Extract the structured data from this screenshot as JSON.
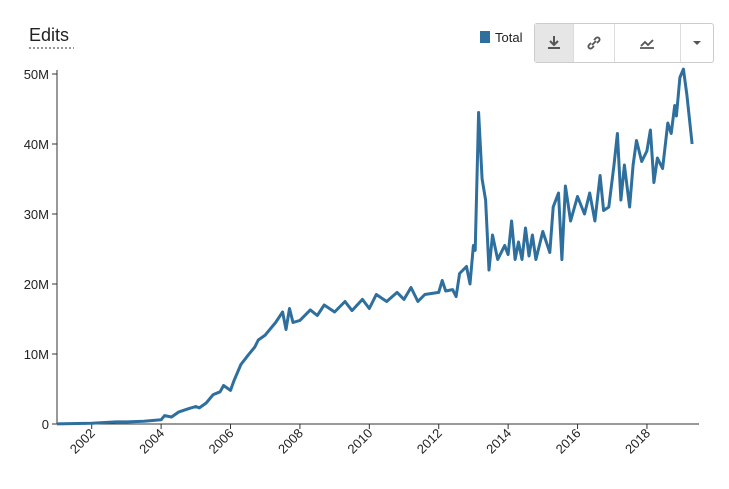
{
  "chart_data": {
    "type": "line",
    "title": "Edits",
    "xlim": [
      2001,
      2019.5
    ],
    "xticks": [
      2002,
      2004,
      2006,
      2008,
      2010,
      2012,
      2014,
      2016,
      2018
    ],
    "ylim": [
      0,
      50000000
    ],
    "yticks": [
      {
        "value": 0,
        "label": "0"
      },
      {
        "value": 10000000,
        "label": "10M"
      },
      {
        "value": 20000000,
        "label": "20M"
      },
      {
        "value": 30000000,
        "label": "30M"
      },
      {
        "value": 40000000,
        "label": "40M"
      },
      {
        "value": 50000000,
        "label": "50M"
      }
    ],
    "legend": "top-right",
    "series": [
      {
        "name": "Total",
        "color": "#2e6f9e",
        "x": [
          2001.0,
          2002.0,
          2002.7,
          2003.0,
          2003.5,
          2004.0,
          2004.1,
          2004.3,
          2004.5,
          2004.8,
          2005.0,
          2005.1,
          2005.3,
          2005.5,
          2005.7,
          2005.8,
          2006.0,
          2006.1,
          2006.3,
          2006.5,
          2006.7,
          2006.8,
          2007.0,
          2007.3,
          2007.5,
          2007.6,
          2007.7,
          2007.8,
          2008.0,
          2008.3,
          2008.5,
          2008.7,
          2009.0,
          2009.3,
          2009.5,
          2009.8,
          2010.0,
          2010.2,
          2010.5,
          2010.8,
          2011.0,
          2011.2,
          2011.4,
          2011.6,
          2012.0,
          2012.1,
          2012.2,
          2012.4,
          2012.5,
          2012.6,
          2012.8,
          2012.9,
          2013.0,
          2013.05,
          2013.15,
          2013.25,
          2013.35,
          2013.45,
          2013.55,
          2013.7,
          2013.9,
          2014.0,
          2014.1,
          2014.2,
          2014.3,
          2014.4,
          2014.5,
          2014.6,
          2014.7,
          2014.8,
          2015.0,
          2015.2,
          2015.3,
          2015.45,
          2015.55,
          2015.65,
          2015.8,
          2016.0,
          2016.2,
          2016.35,
          2016.5,
          2016.65,
          2016.75,
          2016.9,
          2017.05,
          2017.15,
          2017.25,
          2017.35,
          2017.5,
          2017.6,
          2017.7,
          2017.85,
          2018.0,
          2018.1,
          2018.2,
          2018.3,
          2018.45,
          2018.6,
          2018.7,
          2018.8,
          2018.85,
          2018.95,
          2019.05,
          2019.15,
          2019.3
        ],
        "values": [
          20000,
          100000,
          300000,
          300000,
          400000,
          600000,
          1200000,
          1000000,
          1700000,
          2200000,
          2500000,
          2300000,
          3000000,
          4200000,
          4600000,
          5500000,
          4800000,
          6200000,
          8500000,
          9800000,
          11000000,
          12000000,
          12700000,
          14500000,
          16000000,
          13500000,
          16500000,
          14500000,
          14800000,
          16300000,
          15500000,
          17000000,
          16000000,
          17500000,
          16200000,
          17800000,
          16500000,
          18500000,
          17500000,
          18800000,
          17800000,
          19500000,
          17500000,
          18500000,
          18800000,
          20500000,
          19000000,
          19200000,
          18200000,
          21500000,
          22500000,
          20000000,
          25500000,
          24800000,
          44500000,
          35000000,
          32000000,
          22000000,
          27000000,
          23500000,
          25500000,
          24200000,
          29000000,
          23500000,
          26000000,
          23500000,
          28000000,
          24000000,
          27000000,
          23500000,
          27500000,
          24500000,
          31000000,
          33000000,
          23500000,
          34000000,
          29000000,
          32500000,
          30000000,
          33000000,
          29000000,
          35500000,
          30500000,
          31000000,
          37000000,
          41500000,
          32000000,
          37000000,
          31000000,
          37000000,
          40500000,
          37500000,
          39000000,
          42000000,
          34500000,
          38000000,
          36500000,
          43000000,
          41500000,
          45500000,
          44000000,
          49500000,
          50700000,
          47000000,
          40000000
        ]
      }
    ]
  }
}
